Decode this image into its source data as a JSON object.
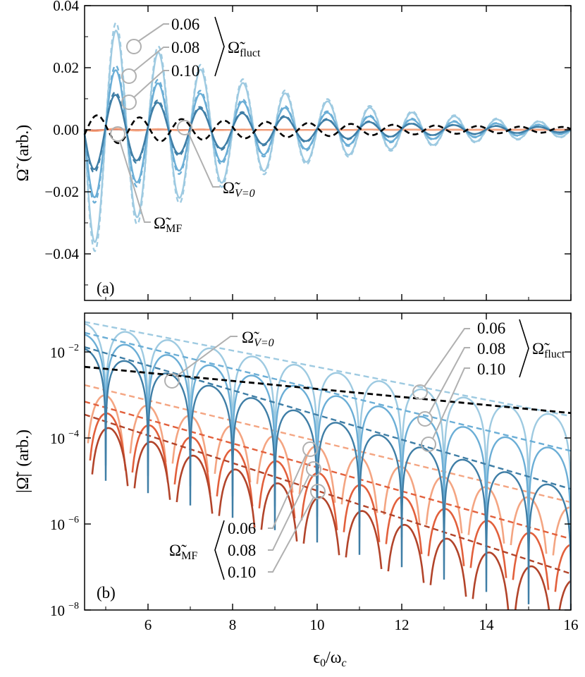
{
  "chart_data": [
    {
      "panel_label": "(a)",
      "type": "line",
      "ylabel": "Ω̃  (arb.)",
      "ylabel_parts": {
        "symbol": "Ω̃",
        "unit": "(arb.)"
      },
      "xlim": [
        4.5,
        16
      ],
      "ylim": [
        -0.055,
        0.04
      ],
      "yticks": [
        -0.04,
        -0.02,
        0.0,
        0.02,
        0.04
      ],
      "ytick_labels": [
        "−0.04",
        "−0.02",
        "0.00",
        "0.02",
        "0.04"
      ],
      "grid": false,
      "colors": {
        "fluct": [
          "#9ecae1",
          "#6baed6",
          "#3f7ea6"
        ],
        "mf": [
          "#f4a582",
          "#e2603c",
          "#b2442a"
        ],
        "v0": "#000000",
        "annotation": "#b0b0b0"
      },
      "fluct_amplitudes": [
        0.03,
        0.018,
        0.0105
      ],
      "fluct_decay": 0.25,
      "mf_amplitude": 0.0008,
      "v0_amplitude": 0.0045,
      "v0_decay": 0.15,
      "annotations": {
        "fluct_values": [
          "0.06",
          "0.08",
          "0.10"
        ],
        "fluct_label": {
          "main": "Ω̃",
          "sub": "fluct"
        },
        "v0_label": {
          "main": "Ω̃",
          "sub": "V=0"
        },
        "mf_label": {
          "main": "Ω̃",
          "sub": "MF"
        }
      }
    },
    {
      "panel_label": "(b)",
      "type": "line",
      "yscale": "log",
      "ylabel": "|Ω̃|  (arb.)",
      "ylabel_parts": {
        "symbol": "|Ω̃|",
        "unit": "(arb.)"
      },
      "xlabel": "ϵ0/ωc",
      "xlabel_parts": {
        "main": "ϵ",
        "sub0": "0",
        "mid": "/ω",
        "sub1": "c"
      },
      "xlim": [
        4.5,
        16
      ],
      "ylim": [
        1e-08,
        0.08
      ],
      "xticks": [
        6,
        8,
        10,
        12,
        14,
        16
      ],
      "xtick_labels": [
        "6",
        "8",
        "10",
        "12",
        "14",
        "16"
      ],
      "yticks": [
        1e-08,
        1e-06,
        0.0001,
        0.01
      ],
      "ytick_labels": [
        {
          "base": "10",
          "exp": "−8"
        },
        {
          "base": "10",
          "exp": "−6"
        },
        {
          "base": "10",
          "exp": "−4"
        },
        {
          "base": "10",
          "exp": "−2"
        }
      ],
      "grid": false,
      "fluct_envelope": [
        {
          "x": [
            4.5,
            16
          ],
          "y": [
            0.05,
            0.00032
          ]
        },
        {
          "x": [
            4.5,
            16
          ],
          "y": [
            0.028,
            5e-05
          ]
        },
        {
          "x": [
            4.5,
            16
          ],
          "y": [
            0.013,
            6.5e-06
          ]
        }
      ],
      "mf_envelope": [
        {
          "x": [
            4.5,
            16
          ],
          "y": [
            0.0017,
            3.2e-06
          ]
        },
        {
          "x": [
            4.5,
            16
          ],
          "y": [
            0.0007,
            4.5e-07
          ]
        },
        {
          "x": [
            4.5,
            16
          ],
          "y": [
            0.00035,
            7e-08
          ]
        }
      ],
      "v0_envelope": {
        "x": [
          4.5,
          16
        ],
        "y": [
          0.0045,
          0.00038
        ]
      },
      "annotations": {
        "fluct_values": [
          "0.06",
          "0.08",
          "0.10"
        ],
        "fluct_label": {
          "main": "Ω̃",
          "sub": "fluct"
        },
        "v0_label": {
          "main": "Ω̃",
          "sub": "V=0"
        },
        "mf_values": [
          "0.06",
          "0.08",
          "0.10"
        ],
        "mf_label": {
          "main": "Ω̃",
          "sub": "MF"
        }
      }
    }
  ]
}
